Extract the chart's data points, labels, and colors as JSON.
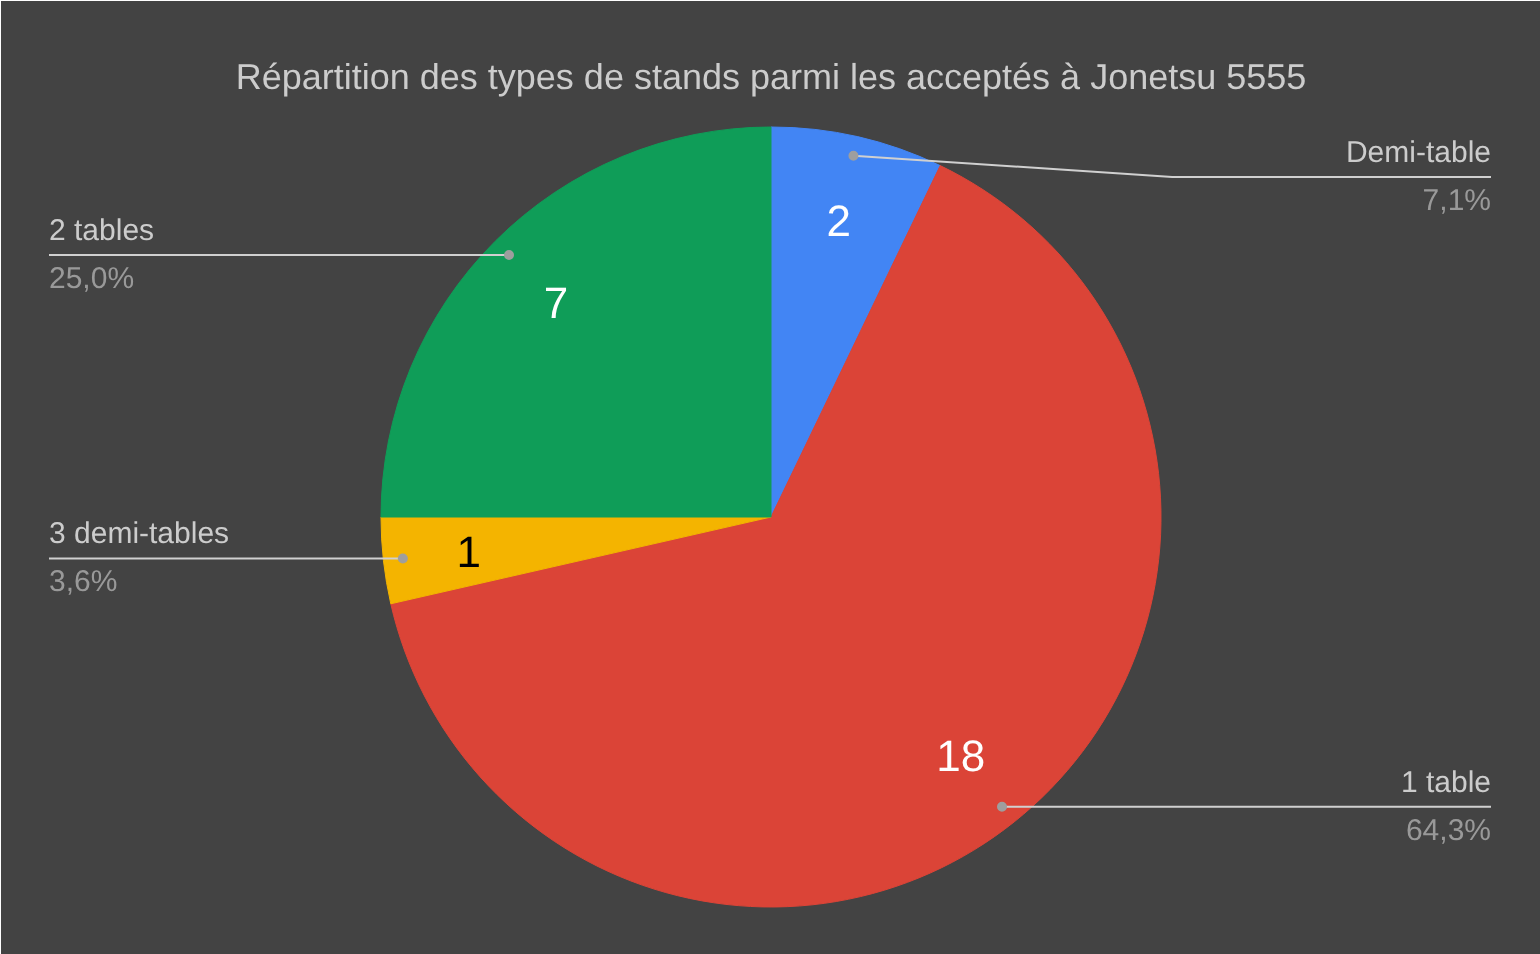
{
  "chart_data": {
    "type": "pie",
    "title": "Répartition des types de stands parmi les acceptés à Jonetsu 5555",
    "categories": [
      "Demi-table",
      "1 table",
      "3 demi-tables",
      "2 tables"
    ],
    "values": [
      2,
      18,
      1,
      7
    ],
    "colors": [
      "#4285f4",
      "#db4437",
      "#f4b400",
      "#0f9d58"
    ],
    "annotations": [
      "7,1%",
      "64,3%",
      "3,6%",
      "25,0%"
    ],
    "data_labels": true
  }
}
